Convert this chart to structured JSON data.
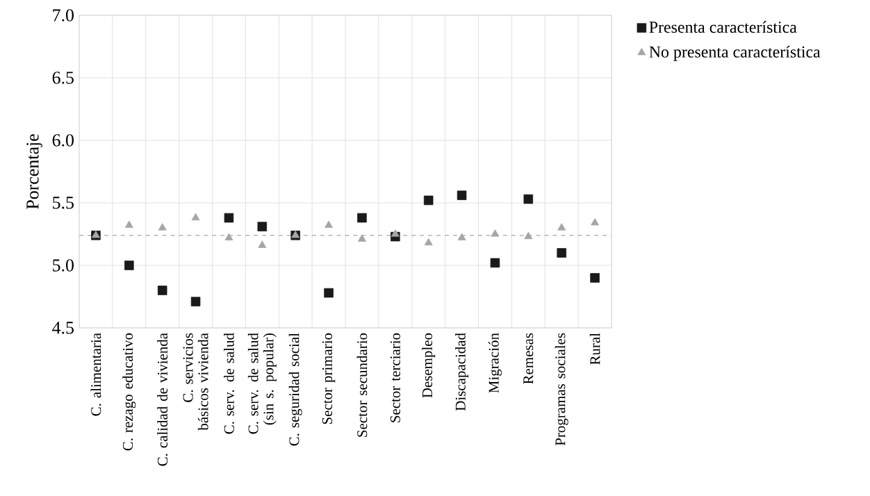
{
  "chart_data": {
    "type": "scatter",
    "ylabel": "Porcentaje",
    "categories": [
      "C. alimentaria",
      "C. rezago educativo",
      "C. calidad de vivienda",
      "C. servicios básicos vivienda",
      "C. serv. de salud",
      "C. serv. de salud (sin s. popular)",
      "C. seguridad social",
      "Sector primario",
      "Sector secundario",
      "Sector terciario",
      "Desempleo",
      "Discapacidad",
      "Migración",
      "Remesas",
      "Programas sociales",
      "Rural"
    ],
    "series": [
      {
        "name": "Presenta característica",
        "color": "#1a1a1a",
        "marker": "square",
        "values": [
          5.24,
          5.0,
          4.8,
          4.71,
          5.38,
          5.31,
          5.24,
          4.78,
          5.38,
          5.23,
          5.52,
          5.56,
          5.02,
          5.53,
          5.1,
          4.9
        ]
      },
      {
        "name": "No presenta característica",
        "color": "#a6a6a6",
        "marker": "triangle",
        "values": [
          5.24,
          5.32,
          5.3,
          5.38,
          5.22,
          5.16,
          5.24,
          5.32,
          5.21,
          5.25,
          5.18,
          5.22,
          5.25,
          5.23,
          5.3,
          5.34
        ]
      }
    ],
    "ylim": [
      4.5,
      7.0
    ],
    "yticks": [
      4.5,
      {
        "value": 5,
        "label": "5.0"
      },
      5.5,
      {
        "value": 6,
        "label": "6.0"
      },
      6.5,
      {
        "value": 7,
        "label": "7.0"
      }
    ],
    "ref_lines": [
      {
        "axis": "y",
        "value": 5.24,
        "color": "#a6a6a6",
        "line_style": "dashed"
      }
    ],
    "grid": true,
    "legend": "top right"
  }
}
